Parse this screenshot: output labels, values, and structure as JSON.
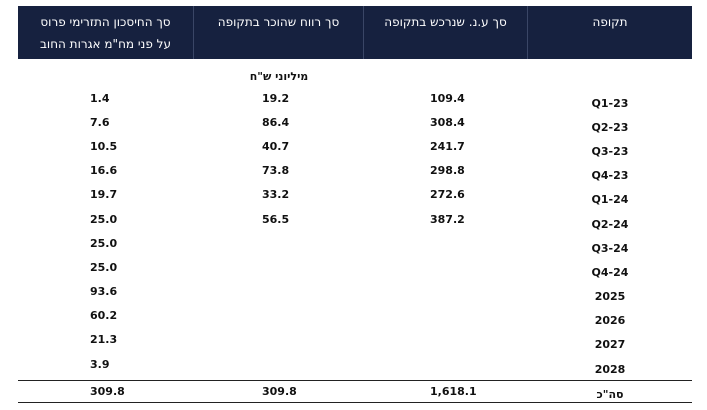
{
  "headers": {
    "period": "תקופה",
    "units": "סך ע.נ. שנרכש בתקופה",
    "profit": "סך רווח שהוכר בתקופה",
    "saving_line1": "סך החיסכון התזרימי פרוס",
    "saving_line2": "על פני מח\"מ אגרות החוב"
  },
  "units_label": "מיליוני ש\"ח",
  "rows": [
    {
      "period": "Q1-23",
      "units": "109.4",
      "profit": "19.2",
      "saving": "1.4"
    },
    {
      "period": "Q2-23",
      "units": "308.4",
      "profit": "86.4",
      "saving": "7.6"
    },
    {
      "period": "Q3-23",
      "units": "241.7",
      "profit": "40.7",
      "saving": "10.5"
    },
    {
      "period": "Q4-23",
      "units": "298.8",
      "profit": "73.8",
      "saving": "16.6"
    },
    {
      "period": "Q1-24",
      "units": "272.6",
      "profit": "33.2",
      "saving": "19.7"
    },
    {
      "period": "Q2-24",
      "units": "387.2",
      "profit": "56.5",
      "saving": "25.0"
    },
    {
      "period": "Q3-24",
      "units": "",
      "profit": "",
      "saving": "25.0"
    },
    {
      "period": "Q4-24",
      "units": "",
      "profit": "",
      "saving": "25.0"
    },
    {
      "period": "2025",
      "units": "",
      "profit": "",
      "saving": "93.6"
    },
    {
      "period": "2026",
      "units": "",
      "profit": "",
      "saving": "60.2"
    },
    {
      "period": "2027",
      "units": "",
      "profit": "",
      "saving": "21.3"
    },
    {
      "period": "2028",
      "units": "",
      "profit": "",
      "saving": "3.9"
    }
  ],
  "total": {
    "period": "סה\"כ",
    "units": "1,618.1",
    "profit": "309.8",
    "saving": "309.8"
  }
}
